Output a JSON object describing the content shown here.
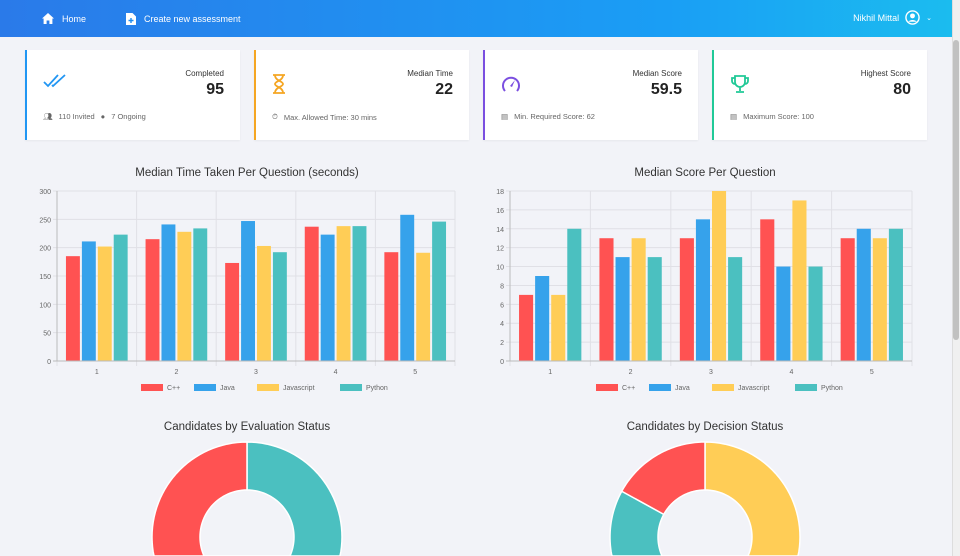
{
  "header": {
    "home": "Home",
    "create": "Create new assessment",
    "user": "Nikhil Mittal"
  },
  "cards": [
    {
      "label": "Completed",
      "value": "95",
      "foot1": "110 Invited",
      "foot2": "7 Ongoing",
      "color": "#2196f3"
    },
    {
      "label": "Median Time",
      "value": "22",
      "foot1": "Max. Allowed Time: 30 mins",
      "color": "#f5a623"
    },
    {
      "label": "Median Score",
      "value": "59.5",
      "foot1": "Min. Required Score: 62",
      "color": "#7b4fe0"
    },
    {
      "label": "Highest Score",
      "value": "80",
      "foot1": "Maximum Score: 100",
      "color": "#20c997"
    }
  ],
  "chart_data": [
    {
      "type": "bar",
      "title": "Median Time Taken Per Question (seconds)",
      "categories": [
        "1",
        "2",
        "3",
        "4",
        "5"
      ],
      "ylim": [
        0,
        300
      ],
      "yticks": [
        0,
        50,
        100,
        150,
        200,
        250,
        300
      ],
      "legend": "bottom",
      "series": [
        {
          "name": "C++",
          "color": "#ff5252",
          "values": [
            185,
            215,
            173,
            237,
            192
          ]
        },
        {
          "name": "Java",
          "color": "#36a2eb",
          "values": [
            211,
            241,
            247,
            223,
            258
          ]
        },
        {
          "name": "Javascript",
          "color": "#ffcd56",
          "values": [
            202,
            228,
            203,
            238,
            191
          ]
        },
        {
          "name": "Python",
          "color": "#4bc0c0",
          "values": [
            223,
            234,
            192,
            238,
            246
          ]
        }
      ]
    },
    {
      "type": "bar",
      "title": "Median Score Per Question",
      "categories": [
        "1",
        "2",
        "3",
        "4",
        "5"
      ],
      "ylim": [
        0,
        18
      ],
      "yticks": [
        0,
        2,
        4,
        6,
        8,
        10,
        12,
        14,
        16,
        18
      ],
      "legend": "bottom",
      "series": [
        {
          "name": "C++",
          "color": "#ff5252",
          "values": [
            7,
            13,
            13,
            15,
            13
          ]
        },
        {
          "name": "Java",
          "color": "#36a2eb",
          "values": [
            9,
            11,
            15,
            10,
            14
          ]
        },
        {
          "name": "Javascript",
          "color": "#ffcd56",
          "values": [
            7,
            13,
            18,
            17,
            13
          ]
        },
        {
          "name": "Python",
          "color": "#4bc0c0",
          "values": [
            14,
            11,
            11,
            10,
            14
          ]
        }
      ]
    },
    {
      "type": "pie",
      "title": "Candidates by Evaluation Status",
      "values": [
        50,
        50
      ],
      "colors": [
        "#4bc0c0",
        "#ff5252"
      ]
    },
    {
      "type": "pie",
      "title": "Candidates by Decision Status",
      "values": [
        50,
        33,
        17
      ],
      "colors": [
        "#ffcd56",
        "#4bc0c0",
        "#ff5252"
      ]
    }
  ]
}
